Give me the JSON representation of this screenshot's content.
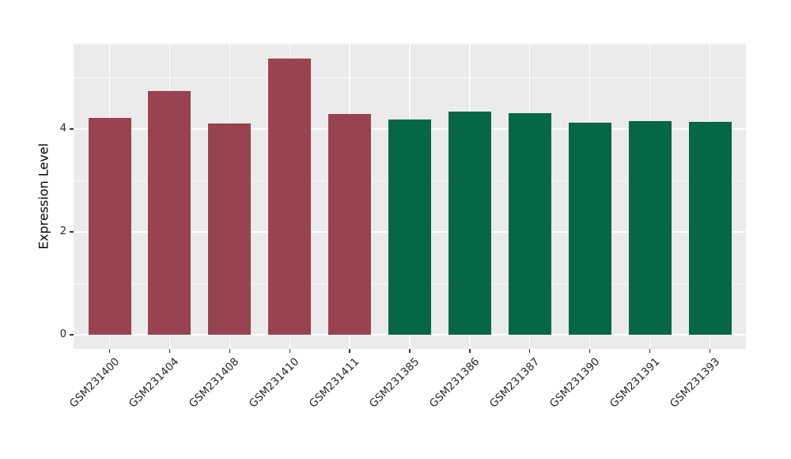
{
  "chart_data": {
    "type": "bar",
    "title": "",
    "xlabel": "",
    "ylabel": "Expression Level",
    "categories": [
      "GSM231400",
      "GSM231404",
      "GSM231408",
      "GSM231410",
      "GSM231411",
      "GSM231385",
      "GSM231386",
      "GSM231387",
      "GSM231390",
      "GSM231391",
      "GSM231393"
    ],
    "values": [
      4.21,
      4.74,
      4.11,
      5.37,
      4.29,
      4.18,
      4.34,
      4.31,
      4.12,
      4.15,
      4.14
    ],
    "bar_color_groups": [
      "red",
      "red",
      "red",
      "red",
      "red",
      "green",
      "green",
      "green",
      "green",
      "green",
      "green"
    ],
    "colors": {
      "red": "#9A4350",
      "green": "#056747",
      "panel_background": "#EBEBEB",
      "grid_major": "#FFFFFF",
      "tick_text": "#262626"
    },
    "yticks": [
      0,
      2,
      4
    ],
    "yticks_minor": [
      1,
      3,
      5
    ],
    "ylim": [
      -0.28,
      5.65
    ],
    "grid": true,
    "legend": "none",
    "x_tick_rotation_deg": 45
  }
}
